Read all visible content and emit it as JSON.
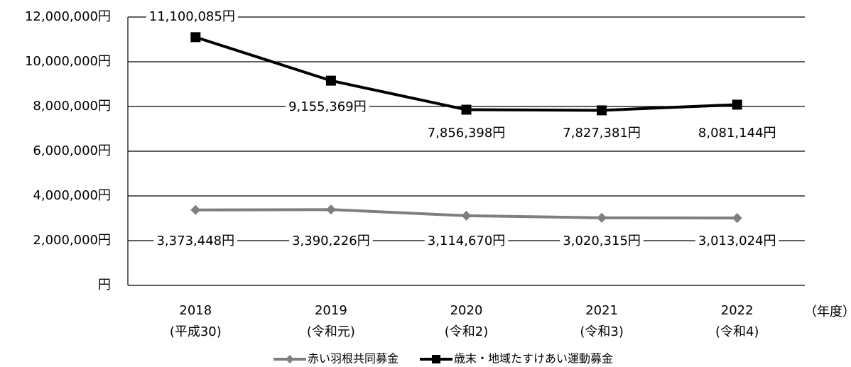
{
  "chart_data": {
    "type": "line",
    "categories": [
      "2018",
      "2019",
      "2020",
      "2021",
      "2022"
    ],
    "category_sublabels": [
      "(平成30)",
      "(令和元)",
      "(令和2)",
      "(令和3)",
      "(令和4)"
    ],
    "x_label": "（年度）",
    "ylim": [
      0,
      12000000
    ],
    "yticks": [
      {
        "value": 0,
        "label": "円"
      },
      {
        "value": 2000000,
        "label": "2,000,000円"
      },
      {
        "value": 4000000,
        "label": "4,000,000円"
      },
      {
        "value": 6000000,
        "label": "6,000,000円"
      },
      {
        "value": 8000000,
        "label": "8,000,000円"
      },
      {
        "value": 10000000,
        "label": "10,000,000円"
      },
      {
        "value": 12000000,
        "label": "12,000,000円"
      }
    ],
    "grid": true,
    "legend": "bottom",
    "series": [
      {
        "name": "赤い羽根共同募金",
        "color": "#7f7f7f",
        "marker": "diamond",
        "values": [
          3373448,
          3390226,
          3114670,
          3020315,
          3013024
        ],
        "value_labels": [
          "3,373,448円",
          "3,390,226円",
          "3,114,670円",
          "3,020,315円",
          "3,013,024円"
        ]
      },
      {
        "name": "歳末・地域たすけあい運動募金",
        "color": "#000000",
        "marker": "square",
        "values": [
          11100085,
          9155369,
          7856398,
          7827381,
          8081144
        ],
        "value_labels": [
          "11,100,085円",
          "9,155,369円",
          "7,856,398円",
          "7,827,381円",
          "8,081,144円"
        ]
      }
    ]
  }
}
